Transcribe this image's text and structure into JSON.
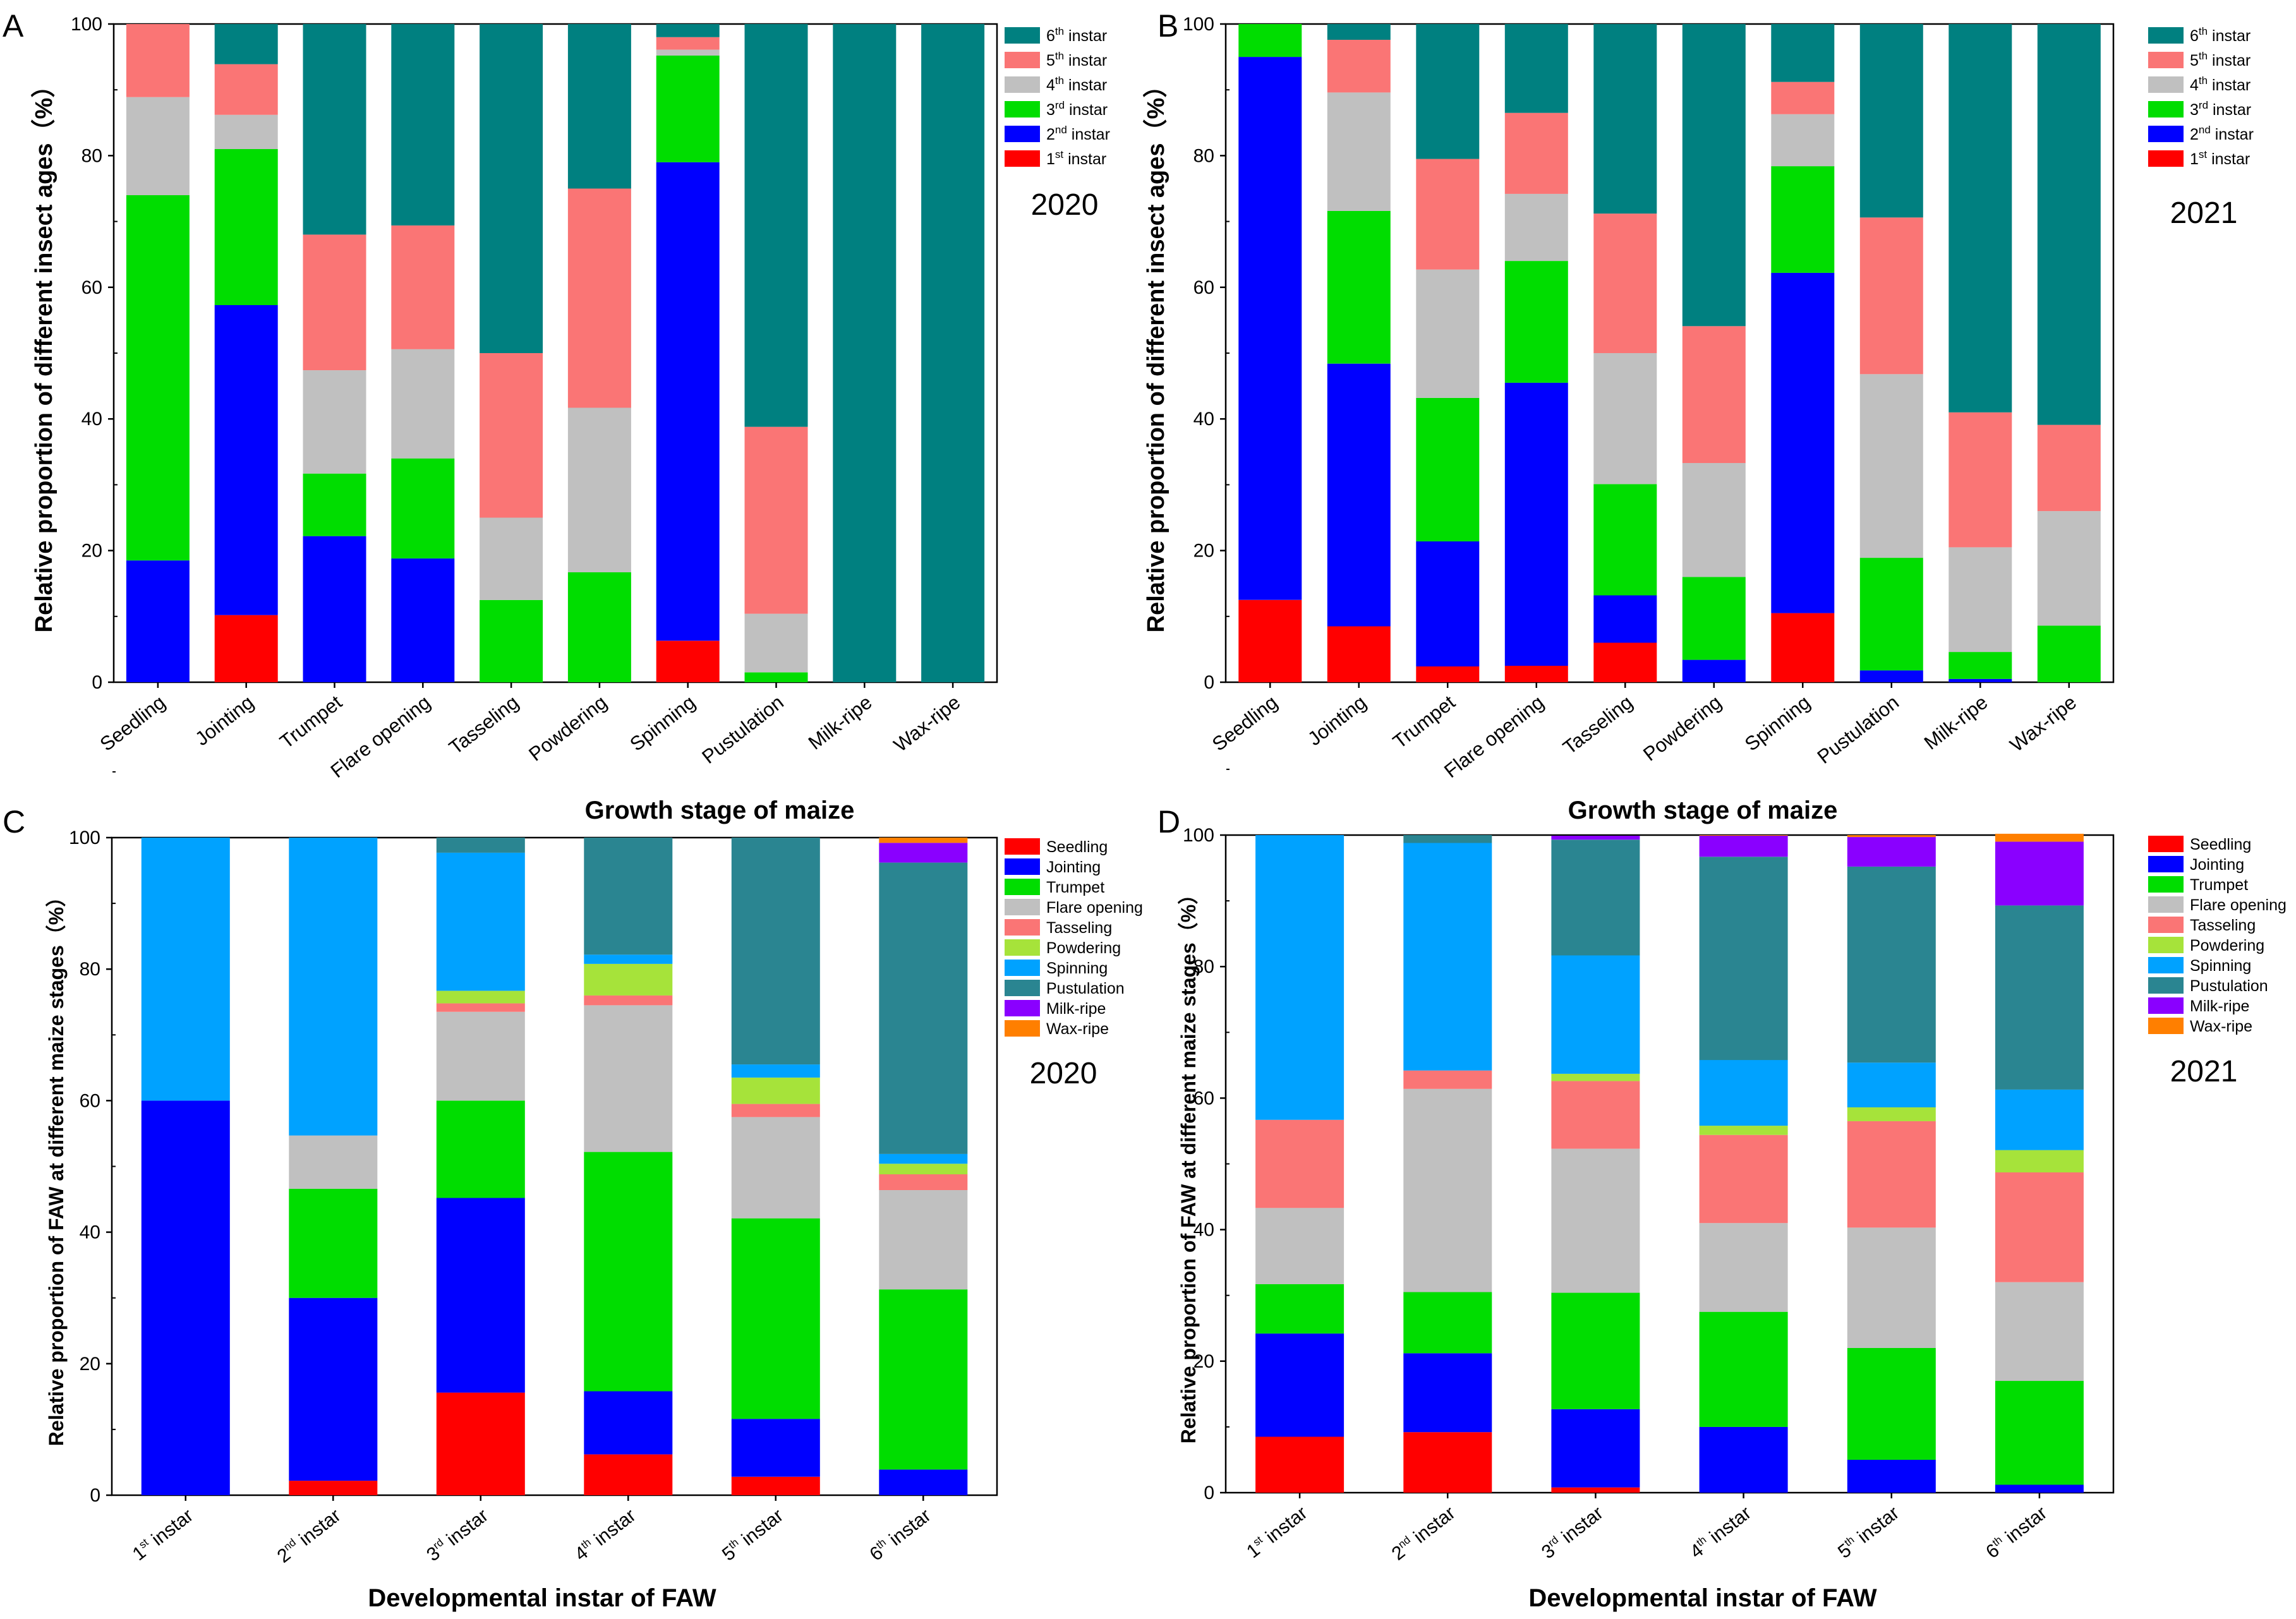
{
  "colors": {
    "instar": [
      "#ff0000",
      "#0000ff",
      "#00dd00",
      "#c0c0c0",
      "#fa7575",
      "#008080"
    ],
    "stage": [
      "#ff0000",
      "#0000ff",
      "#00dd00",
      "#c0c0c0",
      "#fa7575",
      "#a6e33a",
      "#00a2ff",
      "#2a8591",
      "#8a00ff",
      "#ff7f00"
    ]
  },
  "chart_data": [
    {
      "panel": "A",
      "type": "bar",
      "stacked": true,
      "year_label": "2020",
      "xlabel": "Growth stage of maize",
      "ylabel": "Relative proportion of different insect ages（%）",
      "ylim": [
        0,
        100
      ],
      "yticks": [
        "0",
        "20",
        "40",
        "60",
        "80",
        "100"
      ],
      "legend_position": "top-right",
      "categories": [
        "Seedling",
        "Jointing",
        "Trumpet",
        "Flare opening",
        "Tasseling",
        "Powdering",
        "Spinning",
        "Pustulation",
        "Milk-ripe",
        "Wax-ripe"
      ],
      "series": [
        {
          "name": "1st instar",
          "base": "1",
          "sup": "st",
          "rest": " instar",
          "values": [
            0,
            10.2,
            0,
            0,
            0,
            0,
            6.3,
            0,
            0,
            0
          ]
        },
        {
          "name": "2nd instar",
          "base": "2",
          "sup": "nd",
          "rest": " instar",
          "values": [
            18.5,
            47.1,
            22.2,
            18.8,
            0,
            0,
            72.7,
            0,
            0,
            0
          ]
        },
        {
          "name": "3rd instar",
          "base": "3",
          "sup": "rd",
          "rest": " instar",
          "values": [
            55.5,
            23.7,
            9.5,
            15.2,
            12.5,
            16.7,
            16.2,
            1.5,
            0,
            0
          ]
        },
        {
          "name": "4th instar",
          "base": "4",
          "sup": "th",
          "rest": " instar",
          "values": [
            14.9,
            5.2,
            15.7,
            16.6,
            12.5,
            25.0,
            0.9,
            8.9,
            0,
            0
          ]
        },
        {
          "name": "5th instar",
          "base": "5",
          "sup": "th",
          "rest": " instar",
          "values": [
            11.1,
            7.7,
            20.6,
            18.8,
            25.0,
            33.3,
            1.9,
            28.4,
            0,
            0
          ]
        },
        {
          "name": "6th instar",
          "base": "6",
          "sup": "th",
          "rest": " instar",
          "values": [
            0,
            6.1,
            32.0,
            30.6,
            50.0,
            25.0,
            2.0,
            61.2,
            100,
            100
          ]
        }
      ]
    },
    {
      "panel": "B",
      "type": "bar",
      "stacked": true,
      "year_label": "2021",
      "xlabel": "Growth stage of maize",
      "ylabel": "Relative proportion of different insect ages（%）",
      "ylim": [
        0,
        100
      ],
      "yticks": [
        "0",
        "20",
        "40",
        "60",
        "80",
        "100"
      ],
      "legend_position": "top-right",
      "categories": [
        "Seedling",
        "Jointing",
        "Trumpet",
        "Flare opening",
        "Tasseling",
        "Powdering",
        "Spinning",
        "Pustulation",
        "Milk-ripe",
        "Wax-ripe"
      ],
      "series": [
        {
          "name": "1st instar",
          "base": "1",
          "sup": "st",
          "rest": " instar",
          "values": [
            12.5,
            8.5,
            2.4,
            2.5,
            6.0,
            0,
            10.5,
            0,
            0,
            0
          ]
        },
        {
          "name": "2nd instar",
          "base": "2",
          "sup": "nd",
          "rest": " instar",
          "values": [
            82.5,
            39.9,
            19.0,
            43.0,
            7.2,
            3.4,
            51.7,
            1.8,
            0.5,
            0
          ]
        },
        {
          "name": "3rd instar",
          "base": "3",
          "sup": "rd",
          "rest": " instar",
          "values": [
            5.0,
            23.2,
            21.8,
            18.5,
            16.9,
            12.6,
            16.2,
            17.1,
            4.1,
            8.6
          ]
        },
        {
          "name": "4th instar",
          "base": "4",
          "sup": "th",
          "rest": " instar",
          "values": [
            0,
            18.0,
            19.5,
            10.2,
            19.9,
            17.3,
            7.9,
            27.9,
            15.9,
            17.4
          ]
        },
        {
          "name": "5th instar",
          "base": "5",
          "sup": "th",
          "rest": " instar",
          "values": [
            0,
            8.0,
            16.8,
            12.3,
            21.2,
            20.8,
            4.9,
            23.8,
            20.5,
            13.1
          ]
        },
        {
          "name": "6th instar",
          "base": "6",
          "sup": "th",
          "rest": " instar",
          "values": [
            0,
            2.4,
            20.5,
            13.5,
            28.8,
            45.9,
            8.8,
            29.4,
            59.0,
            60.9
          ]
        }
      ]
    },
    {
      "panel": "C",
      "type": "bar",
      "stacked": true,
      "year_label": "2020",
      "xlabel": "Developmental instar of FAW",
      "ylabel": "Relative proportion of FAW at different maize stages（%）",
      "ylim": [
        0,
        100
      ],
      "yticks": [
        "0",
        "20",
        "40",
        "60",
        "80",
        "100"
      ],
      "legend_position": "top-right",
      "categories": [
        {
          "base": "1",
          "sup": "st",
          "rest": " instar"
        },
        {
          "base": "2",
          "sup": "nd",
          "rest": " instar"
        },
        {
          "base": "3",
          "sup": "rd",
          "rest": " instar"
        },
        {
          "base": "4",
          "sup": "th",
          "rest": " instar"
        },
        {
          "base": "5",
          "sup": "th",
          "rest": " instar"
        },
        {
          "base": "6",
          "sup": "th",
          "rest": " instar"
        }
      ],
      "series": [
        {
          "name": "Seedling",
          "values": [
            0,
            2.2,
            15.6,
            6.2,
            2.8,
            0
          ]
        },
        {
          "name": "Jointing",
          "values": [
            60.0,
            27.8,
            29.6,
            9.6,
            8.8,
            3.9
          ]
        },
        {
          "name": "Trumpet",
          "values": [
            0,
            16.6,
            14.8,
            36.4,
            30.5,
            27.4
          ]
        },
        {
          "name": "Flare opening",
          "values": [
            0,
            8.1,
            13.5,
            22.3,
            15.4,
            15.1
          ]
        },
        {
          "name": "Tasseling",
          "values": [
            0,
            0,
            1.3,
            1.5,
            2.0,
            2.4
          ]
        },
        {
          "name": "Powdering",
          "values": [
            0,
            0,
            1.9,
            4.8,
            4.0,
            1.6
          ]
        },
        {
          "name": "Spinning",
          "values": [
            40.0,
            45.3,
            21.0,
            1.4,
            2.0,
            1.5
          ]
        },
        {
          "name": "Pustulation",
          "values": [
            0,
            0,
            2.3,
            17.8,
            34.5,
            44.3
          ]
        },
        {
          "name": "Milk-ripe",
          "values": [
            0,
            0,
            0,
            0,
            0,
            3.0
          ]
        },
        {
          "name": "Wax-ripe",
          "values": [
            0,
            0,
            0,
            0,
            0,
            0.8
          ]
        }
      ]
    },
    {
      "panel": "D",
      "type": "bar",
      "stacked": true,
      "year_label": "2021",
      "xlabel": "Developmental instar of FAW",
      "ylabel": "Relative proportion of FAW at different maize stages（%）",
      "ylim": [
        0,
        100
      ],
      "yticks": [
        "0",
        "20",
        "40",
        "60",
        "80",
        "100"
      ],
      "legend_position": "top-right",
      "categories": [
        {
          "base": "1",
          "sup": "st",
          "rest": " instar"
        },
        {
          "base": "2",
          "sup": "nd",
          "rest": " instar"
        },
        {
          "base": "3",
          "sup": "rd",
          "rest": " instar"
        },
        {
          "base": "4",
          "sup": "th",
          "rest": " instar"
        },
        {
          "base": "5",
          "sup": "th",
          "rest": " instar"
        },
        {
          "base": "6",
          "sup": "th",
          "rest": " instar"
        }
      ],
      "series": [
        {
          "name": "Seedling",
          "values": [
            8.5,
            9.2,
            0.8,
            0,
            0,
            0
          ]
        },
        {
          "name": "Jointing",
          "values": [
            15.7,
            12.0,
            11.9,
            10.0,
            5.0,
            1.2
          ]
        },
        {
          "name": "Trumpet",
          "values": [
            7.5,
            9.3,
            17.7,
            17.5,
            17.0,
            15.8
          ]
        },
        {
          "name": "Flare opening",
          "values": [
            11.6,
            30.9,
            21.9,
            13.5,
            18.3,
            15.0
          ]
        },
        {
          "name": "Tasseling",
          "values": [
            13.4,
            2.8,
            10.3,
            13.4,
            16.2,
            16.7
          ]
        },
        {
          "name": "Powdering",
          "values": [
            0,
            0,
            1.1,
            1.4,
            2.1,
            3.4
          ]
        },
        {
          "name": "Spinning",
          "values": [
            43.3,
            34.6,
            18.0,
            10.0,
            6.8,
            9.2
          ]
        },
        {
          "name": "Pustulation",
          "values": [
            0,
            1.2,
            17.6,
            30.9,
            29.8,
            28.0
          ]
        },
        {
          "name": "Milk-ripe",
          "values": [
            0,
            0,
            0.6,
            3.2,
            4.5,
            9.7
          ]
        },
        {
          "name": "Wax-ripe",
          "values": [
            0,
            0,
            0,
            0.1,
            0.3,
            1.2
          ]
        }
      ]
    }
  ]
}
